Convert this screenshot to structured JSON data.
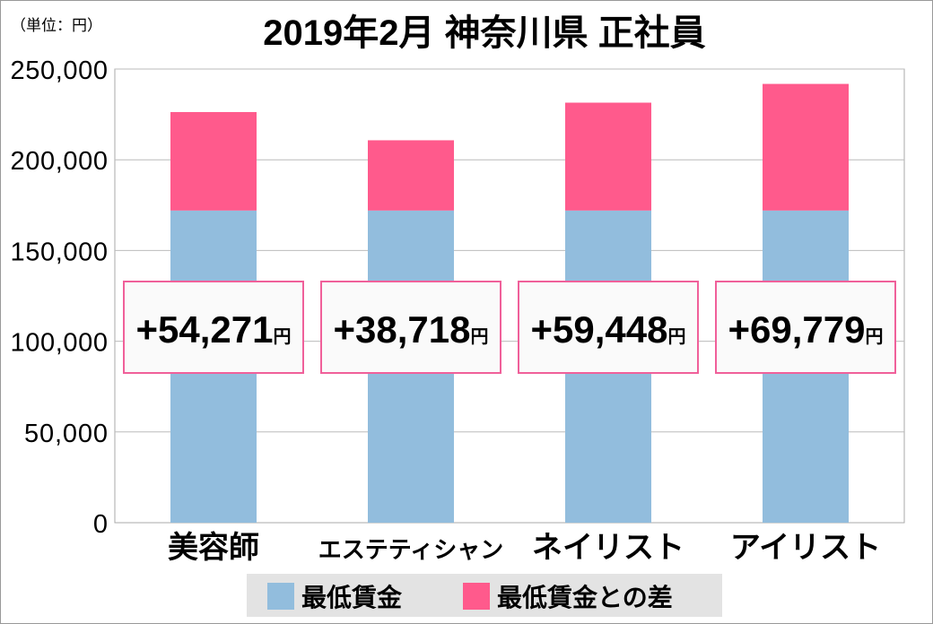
{
  "chart_data": {
    "type": "bar",
    "stacked": true,
    "title": "2019年2月 神奈川県 正社員",
    "unit_label": "（単位：円）",
    "xlabel": "",
    "ylabel": "",
    "ylim": [
      0,
      250000
    ],
    "yticks": [
      0,
      50000,
      100000,
      150000,
      200000,
      250000
    ],
    "ytick_labels": [
      "0",
      "50,000",
      "100,000",
      "150,000",
      "200,000",
      "250,000"
    ],
    "grid": true,
    "categories": [
      "美容師",
      "エステティシャン",
      "ネイリスト",
      "アイリスト"
    ],
    "series": [
      {
        "name": "最低賃金",
        "color": "#92bddd",
        "values": [
          172025,
          172025,
          172025,
          172025
        ]
      },
      {
        "name": "最低賃金との差",
        "color": "#ff5a8c",
        "values": [
          54271,
          38718,
          59448,
          69779
        ]
      }
    ],
    "annotations": [
      "+54,271",
      "+38,718",
      "+59,448",
      "+69,779"
    ],
    "annotation_unit": "円",
    "legend_position": "bottom"
  }
}
